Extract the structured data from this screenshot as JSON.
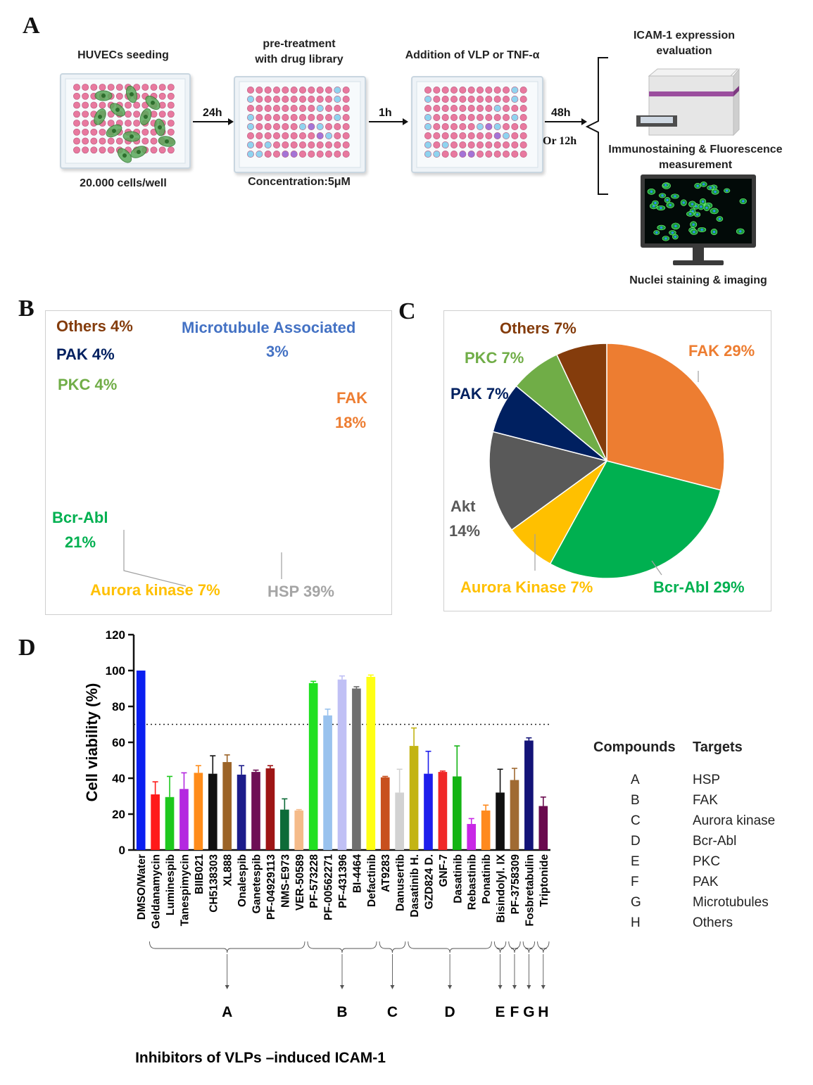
{
  "panel_a": {
    "letter": "A",
    "step1_title": "HUVECs seeding",
    "step1_note": "20.000 cells/well",
    "arrow1": "24h",
    "step2_title_line1": "pre-treatment",
    "step2_title_line2": "with drug library",
    "step2_note": "Concentration:5μM",
    "arrow2": "1h",
    "step3_title": "Addition of VLP or TNF-α",
    "arrow3_line1": "48h",
    "arrow3_line2": "Or 12h",
    "out_title_line1": "ICAM-1 expression",
    "out_title_line2": "evaluation",
    "out_mid_line1": "Immunostaining & Fluorescence",
    "out_mid_line2": "measurement",
    "out_bottom": "Nuclei staining & imaging"
  },
  "panel_b": {
    "letter": "B",
    "labels": {
      "others": "Others 4%",
      "microtubule_1": "Microtubule Associated",
      "microtubule_2": "3%",
      "pak": "PAK 4%",
      "pkc": "PKC 4%",
      "fak_1": "FAK",
      "fak_2": "18%",
      "bcr_1": "Bcr-Abl",
      "bcr_2": "21%",
      "aurora": "Aurora kinase 7%",
      "hsp": "HSP 39%"
    },
    "colors": {
      "microtubule": "#4472c4",
      "fak": "#ed7d31",
      "hsp": "#a5a5a5",
      "aurora": "#ffc000",
      "bcr": "#00b050",
      "pkc": "#70ad47",
      "pak": "#002060",
      "others": "#843c0c"
    }
  },
  "panel_c": {
    "letter": "C",
    "labels": {
      "others": "Others 7%",
      "fak": "FAK 29%",
      "pkc": "PKC 7%",
      "pak": "PAK 7%",
      "akt_1": "Akt",
      "akt_2": "14%",
      "aurora": "Aurora Kinase 7%",
      "bcr": "Bcr-Abl 29%"
    },
    "colors": {
      "fak": "#ed7d31",
      "bcr": "#00b050",
      "aurora": "#ffc000",
      "akt": "#595959",
      "pak": "#002060",
      "pkc": "#70ad47",
      "others": "#843c0c"
    }
  },
  "chart_data": [
    {
      "type": "pie",
      "panel": "B",
      "slices": [
        {
          "label": "Microtubule Associated",
          "value": 3
        },
        {
          "label": "FAK",
          "value": 18
        },
        {
          "label": "HSP",
          "value": 39
        },
        {
          "label": "Aurora kinase",
          "value": 7
        },
        {
          "label": "Bcr-Abl",
          "value": 21
        },
        {
          "label": "PKC",
          "value": 4
        },
        {
          "label": "PAK",
          "value": 4
        },
        {
          "label": "Others",
          "value": 4
        }
      ]
    },
    {
      "type": "pie",
      "panel": "C",
      "slices": [
        {
          "label": "FAK",
          "value": 29
        },
        {
          "label": "Bcr-Abl",
          "value": 29
        },
        {
          "label": "Aurora Kinase",
          "value": 7
        },
        {
          "label": "Akt",
          "value": 14
        },
        {
          "label": "PAK",
          "value": 7
        },
        {
          "label": "PKC",
          "value": 7
        },
        {
          "label": "Others",
          "value": 7
        }
      ]
    },
    {
      "type": "bar",
      "panel": "D",
      "ylabel": "Cell viability (%)",
      "xlabel": "Inhibitors of VLPs –induced ICAM-1",
      "ylim": [
        0,
        120
      ],
      "yticks": [
        "0",
        "20",
        "40",
        "60",
        "80",
        "100",
        "120"
      ],
      "threshold": 70,
      "categories": [
        "DMSO/Water",
        "Geldanamycin",
        "Luminespib",
        "Tanespimycin",
        "BIIB021",
        "CH5138303",
        "XL888",
        "Onalespib",
        "Ganetespib",
        "PF-04929113",
        "NMS-E973",
        "VER-50589",
        "PF-573228",
        "PF-00562271",
        "PF-431396",
        "BI-4464",
        "Defactinib",
        "AT9283",
        "Danusertib",
        "Dasatinib H.",
        "GZD824 D.",
        "GNF-7",
        "Dasatinib",
        "Rebastinib",
        "Ponatinib",
        "Bisindolyl. IX",
        "PF-3758309",
        "Fosbretabulin",
        "Triptonide"
      ],
      "values": [
        100,
        31,
        29.5,
        34,
        43,
        42.5,
        49,
        42,
        43.5,
        45.5,
        22.5,
        22,
        93,
        75,
        95,
        90,
        96.5,
        40.5,
        32,
        58,
        42.5,
        43.5,
        41,
        14.5,
        22,
        32,
        39,
        61,
        24.5
      ],
      "errors": [
        0,
        7,
        11.5,
        9,
        4,
        10,
        4,
        5,
        1,
        1.5,
        6,
        0.5,
        1,
        3.5,
        2,
        1,
        1,
        0.5,
        13,
        10,
        12.5,
        0.5,
        17,
        3,
        3,
        13,
        6.5,
        1.5,
        5
      ],
      "colors": [
        "#0a1ff0",
        "#ff1a1a",
        "#1ec81e",
        "#b429e0",
        "#ff8c1a",
        "#111111",
        "#9c6428",
        "#1c1c8a",
        "#6e0f55",
        "#9e1515",
        "#0d6b38",
        "#f5bb8a",
        "#20e020",
        "#99c2ee",
        "#c0c0f5",
        "#6f6f6f",
        "#ffff14",
        "#c8501e",
        "#d2d2d2",
        "#c3b414",
        "#1e1eec",
        "#f02828",
        "#14b414",
        "#c828e6",
        "#ff8a1e",
        "#111111",
        "#a06a32",
        "#141478",
        "#6a0a4e"
      ],
      "groups": [
        {
          "label": "A",
          "from": 1,
          "to": 11
        },
        {
          "label": "B",
          "from": 12,
          "to": 16
        },
        {
          "label": "C",
          "from": 17,
          "to": 18
        },
        {
          "label": "D",
          "from": 19,
          "to": 24
        },
        {
          "label": "E",
          "from": 25,
          "to": 25
        },
        {
          "label": "F",
          "from": 26,
          "to": 26
        },
        {
          "label": "G",
          "from": 27,
          "to": 27
        },
        {
          "label": "H",
          "from": 28,
          "to": 28
        }
      ]
    }
  ],
  "panel_d": {
    "letter": "D",
    "legend": {
      "head_compounds": "Compounds",
      "head_targets": "Targets",
      "rows": [
        {
          "code": "A",
          "target": "HSP"
        },
        {
          "code": "B",
          "target": "FAK"
        },
        {
          "code": "C",
          "target": "Aurora kinase"
        },
        {
          "code": "D",
          "target": "Bcr-Abl"
        },
        {
          "code": "E",
          "target": "PKC"
        },
        {
          "code": "F",
          "target": "PAK"
        },
        {
          "code": "G",
          "target": "Microtubules"
        },
        {
          "code": "H",
          "target": "Others"
        }
      ]
    }
  }
}
